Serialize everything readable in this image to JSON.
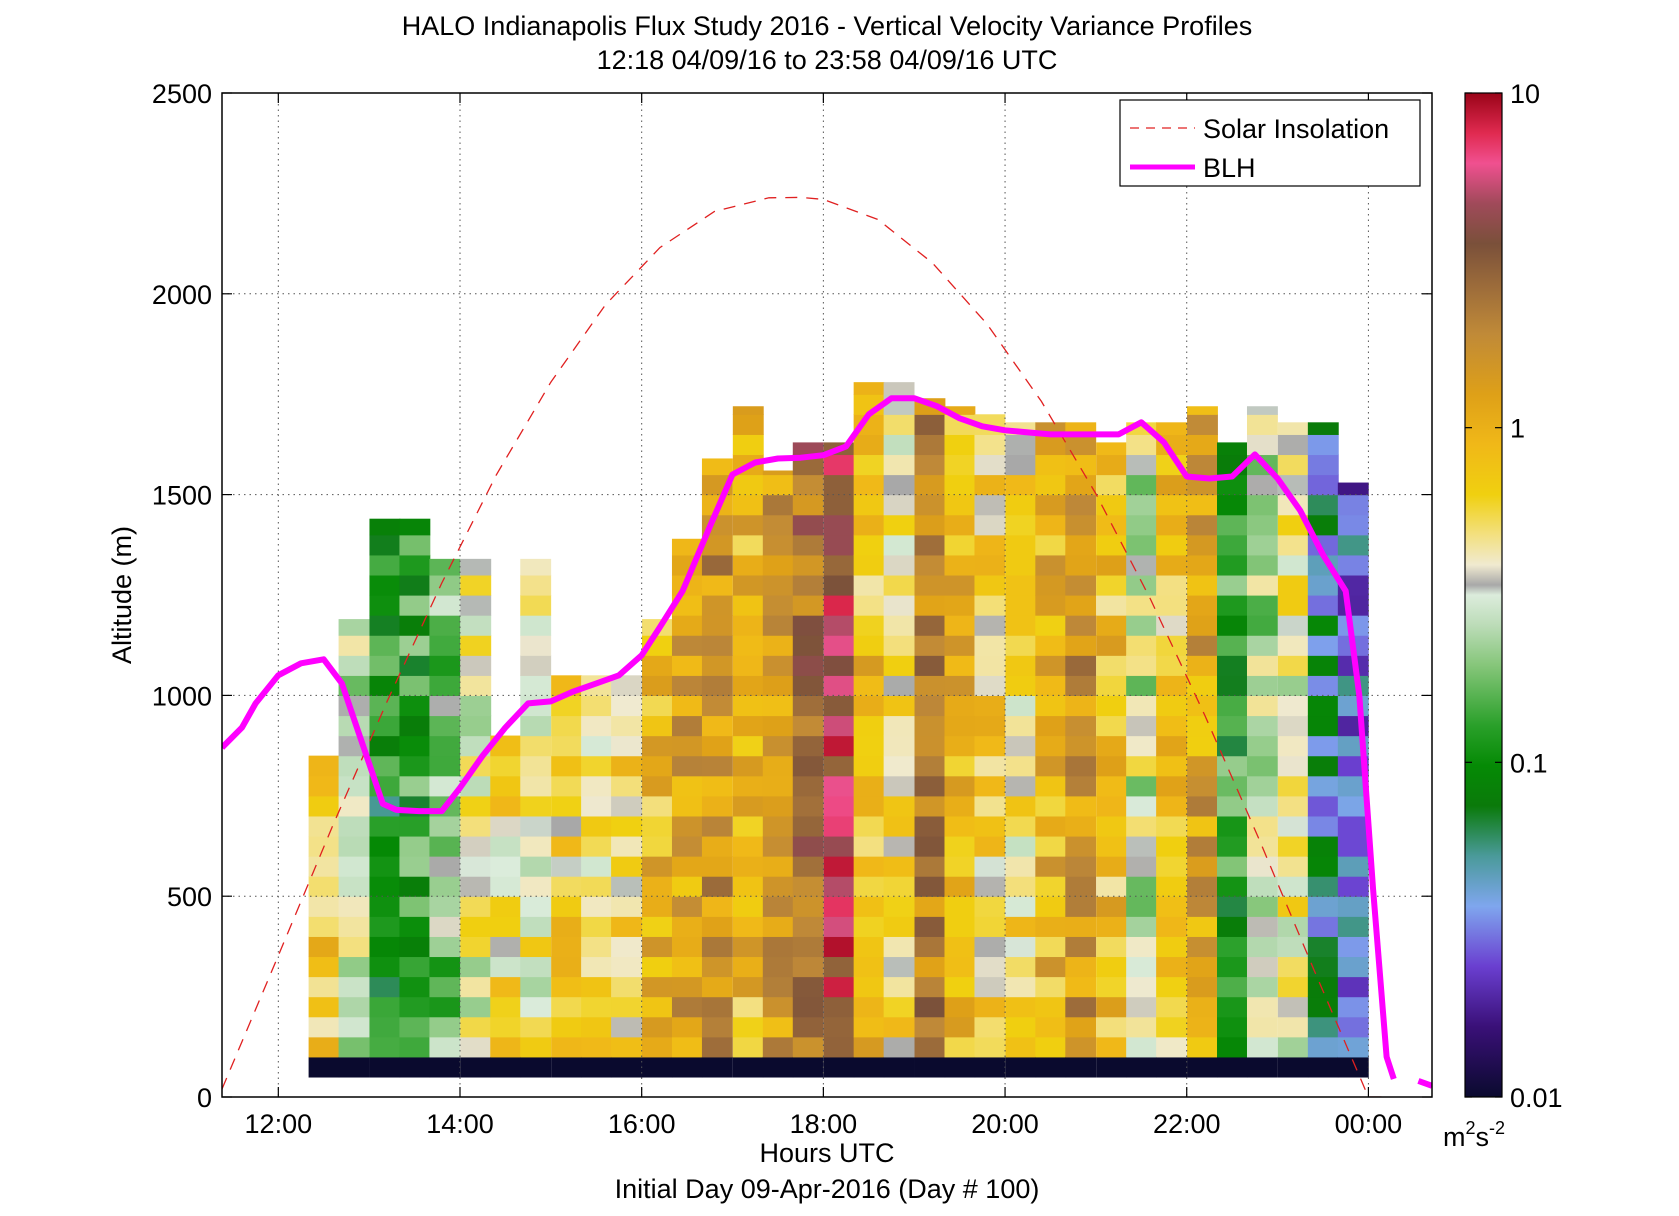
{
  "chart_data": {
    "type": "heatmap",
    "title": "HALO Indianapolis Flux Study 2016 - Vertical Velocity Variance Profiles",
    "subtitle": "12:18 04/09/16 to 23:58 04/09/16  UTC",
    "xlabel": "Hours UTC",
    "xlabel2": "Initial Day 09-Apr-2016 (Day # 100)",
    "ylabel": "Altitude (m)",
    "xlim": [
      11.38,
      24.7
    ],
    "ylim": [
      0,
      2500
    ],
    "x_ticks": [
      12,
      14,
      16,
      18,
      20,
      22,
      24
    ],
    "x_tick_labels": [
      "12:00",
      "14:00",
      "16:00",
      "18:00",
      "20:00",
      "22:00",
      "00:00"
    ],
    "y_ticks": [
      0,
      500,
      1000,
      1500,
      2000,
      2500
    ],
    "y_tick_labels": [
      "0",
      "500",
      "1000",
      "1500",
      "2000",
      "2500"
    ],
    "grid": true,
    "legend_position": "top-right",
    "legend": [
      "Solar Insolation",
      "BLH"
    ],
    "colorbar": {
      "scale": "log",
      "range": [
        0.01,
        10
      ],
      "ticks": [
        0.01,
        0.1,
        1,
        10
      ],
      "tick_labels": [
        "0.01",
        "0.1",
        "1",
        "10"
      ],
      "unit": "m",
      "unit_sup1": "2",
      "unit_mid": "s",
      "unit_sup2": "-2",
      "stops": [
        [
          0.0,
          "#0a0a2e"
        ],
        [
          0.07,
          "#3a1078"
        ],
        [
          0.13,
          "#6a3fd0"
        ],
        [
          0.19,
          "#7fa6ee"
        ],
        [
          0.24,
          "#4a9a9a"
        ],
        [
          0.29,
          "#0a7a0a"
        ],
        [
          0.33,
          "#058a05"
        ],
        [
          0.37,
          "#2aa02a"
        ],
        [
          0.43,
          "#86c67a"
        ],
        [
          0.47,
          "#bcdcb8"
        ],
        [
          0.5,
          "#dcecdc"
        ],
        [
          0.51,
          "#a8a8a8"
        ],
        [
          0.53,
          "#f0ead0"
        ],
        [
          0.56,
          "#f3e080"
        ],
        [
          0.6,
          "#f0d010"
        ],
        [
          0.65,
          "#f0b818"
        ],
        [
          0.7,
          "#dea018"
        ],
        [
          0.76,
          "#c08a38"
        ],
        [
          0.81,
          "#9a6a3a"
        ],
        [
          0.85,
          "#7a503a"
        ],
        [
          0.89,
          "#a04a5a"
        ],
        [
          0.93,
          "#f05090"
        ],
        [
          0.96,
          "#e02a50"
        ],
        [
          1.0,
          "#9a0418"
        ]
      ]
    },
    "solar_insolation": {
      "x": [
        11.38,
        12.0,
        12.6,
        13.2,
        13.8,
        14.4,
        15.0,
        15.6,
        16.2,
        16.8,
        17.4,
        17.75,
        18.0,
        18.6,
        19.2,
        19.8,
        20.4,
        21.0,
        21.6,
        22.2,
        22.8,
        23.4,
        24.0,
        24.2
      ],
      "y": [
        20,
        352,
        676,
        986,
        1280,
        1549,
        1780,
        1972,
        2115,
        2205,
        2239,
        2240,
        2235,
        2185,
        2077,
        1925,
        1732,
        1502,
        1240,
        950,
        640,
        317,
        0,
        0
      ]
    },
    "blh": {
      "x": [
        11.38,
        11.6,
        11.75,
        12.0,
        12.25,
        12.5,
        12.7,
        12.85,
        13.0,
        13.15,
        13.3,
        13.55,
        13.8,
        14.0,
        14.25,
        14.5,
        14.75,
        15.0,
        15.25,
        15.5,
        15.75,
        16.0,
        16.2,
        16.45,
        16.75,
        17.0,
        17.25,
        17.5,
        17.75,
        18.0,
        18.25,
        18.5,
        18.75,
        19.0,
        19.25,
        19.5,
        19.75,
        20.0,
        20.25,
        20.5,
        20.75,
        21.0,
        21.25,
        21.5,
        21.75,
        22.0,
        22.25,
        22.5,
        22.75,
        23.0,
        23.25,
        23.5,
        23.75,
        23.9,
        24.05,
        24.2,
        24.28
      ],
      "y": [
        870,
        920,
        980,
        1050,
        1080,
        1090,
        1030,
        930,
        830,
        730,
        715,
        712,
        712,
        770,
        850,
        920,
        980,
        985,
        1010,
        1030,
        1050,
        1100,
        1170,
        1260,
        1420,
        1550,
        1580,
        1590,
        1592,
        1598,
        1620,
        1700,
        1740,
        1740,
        1720,
        1690,
        1670,
        1660,
        1655,
        1650,
        1650,
        1650,
        1650,
        1680,
        1630,
        1545,
        1540,
        1545,
        1600,
        1540,
        1460,
        1350,
        1260,
        1000,
        520,
        100,
        45
      ]
    },
    "blh_tail": {
      "x": [
        24.55,
        24.7
      ],
      "y": [
        40,
        28
      ]
    },
    "column_hours": [
      12.5,
      12.83,
      13.17,
      13.5,
      13.83,
      14.17,
      14.5,
      14.83,
      15.17,
      15.5,
      15.83,
      16.17,
      16.5,
      16.83,
      17.17,
      17.5,
      17.83,
      18.17,
      18.5,
      18.83,
      19.17,
      19.5,
      19.83,
      20.17,
      20.5,
      20.83,
      21.17,
      21.5,
      21.83,
      22.17,
      22.5,
      22.83,
      23.17,
      23.5,
      23.83
    ],
    "column_tops_m": [
      850,
      1190,
      1440,
      1440,
      1340,
      1340,
      900,
      1340,
      1050,
      1050,
      1050,
      1190,
      1390,
      1590,
      1720,
      1560,
      1630,
      1630,
      1780,
      1780,
      1740,
      1720,
      1700,
      1680,
      1680,
      1680,
      1630,
      1680,
      1680,
      1720,
      1630,
      1720,
      1680,
      1680,
      1530
    ],
    "column_values": [
      0.7,
      0.3,
      0.1,
      0.12,
      0.2,
      0.35,
      0.5,
      0.4,
      0.6,
      0.5,
      0.6,
      0.9,
      1.2,
      1.5,
      0.9,
      1.5,
      2.5,
      5.0,
      0.8,
      0.5,
      2.0,
      0.9,
      0.6,
      0.5,
      0.9,
      1.5,
      0.8,
      0.3,
      0.7,
      1.2,
      0.12,
      0.25,
      0.4,
      0.05,
      0.03
    ],
    "floor_value": 0.01
  }
}
